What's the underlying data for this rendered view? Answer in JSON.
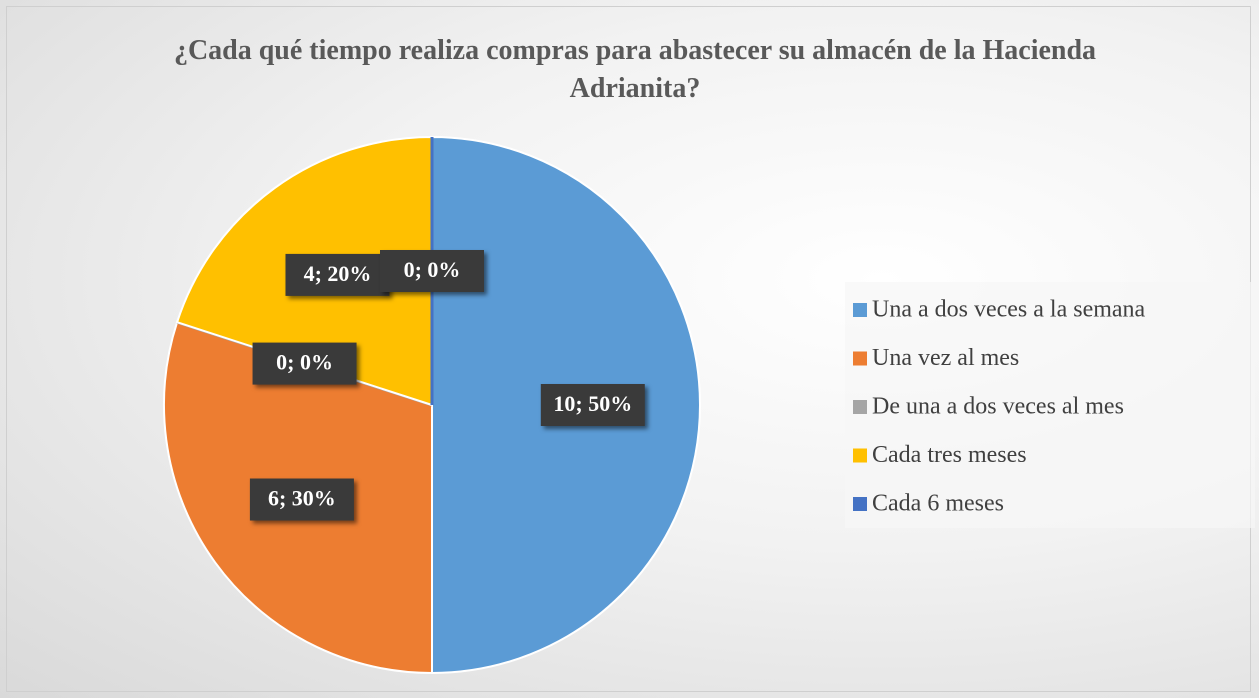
{
  "chart_data": {
    "type": "pie",
    "title": "¿Cada qué tiempo realiza compras para abastecer su almacén de la Hacienda Adrianita?",
    "categories": [
      "Una a dos veces a la semana",
      "Una vez al mes",
      "De una a dos veces al mes",
      "Cada tres meses",
      "Cada 6 meses"
    ],
    "values": [
      10,
      6,
      0,
      4,
      0
    ],
    "value_labels": [
      "10; 50%",
      "6; 30%",
      "0; 0%",
      "4; 20%",
      "0; 0%"
    ],
    "colors": [
      "#5b9bd5",
      "#ed7d31",
      "#a5a5a5",
      "#ffc000",
      "#4472c4"
    ],
    "legend": "right"
  }
}
